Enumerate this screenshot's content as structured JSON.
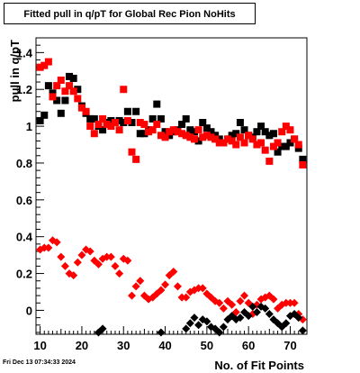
{
  "title": "Fitted pull in q/pT for Global Rec Pion NoHits",
  "footer": "Fri Dec 13 07:34:33 2024",
  "chart_data": {
    "type": "scatter",
    "xlabel": "No. of Fit Points",
    "ylabel": "pull in q/pT",
    "xlim": [
      9,
      74
    ],
    "ylim": [
      -0.13,
      1.48
    ],
    "xticks": [
      10,
      20,
      30,
      40,
      50,
      60,
      70
    ],
    "yticks": [
      0,
      0.2,
      0.4,
      0.6,
      0.8,
      1,
      1.2,
      1.4
    ],
    "ytick_labels": [
      "0",
      "0.2",
      "0.4",
      "0.6",
      "0.8",
      "1",
      "1.2",
      "1.4"
    ],
    "grid": false,
    "legend": "none",
    "series": [
      {
        "marker": "square",
        "color": "#000000",
        "points": [
          [
            10,
            1.03
          ],
          [
            11,
            1.06
          ],
          [
            12,
            1.22
          ],
          [
            13,
            1.18
          ],
          [
            14,
            1.14
          ],
          [
            15,
            1.07
          ],
          [
            16,
            1.14
          ],
          [
            17,
            1.27
          ],
          [
            18,
            1.26
          ],
          [
            19,
            1.2
          ],
          [
            20,
            1.11
          ],
          [
            21,
            1.07
          ],
          [
            22,
            1.04
          ],
          [
            23,
            1.04
          ],
          [
            24,
            1.0
          ],
          [
            25,
            0.98
          ],
          [
            26,
            1.02
          ],
          [
            27,
            1.03
          ],
          [
            28,
            1.02
          ],
          [
            29,
            1.03
          ],
          [
            30,
            1.02
          ],
          [
            31,
            1.08
          ],
          [
            32,
            1.02
          ],
          [
            33,
            1.08
          ],
          [
            34,
            0.96
          ],
          [
            35,
            0.96
          ],
          [
            36,
            0.98
          ],
          [
            37,
            1.04
          ],
          [
            38,
            1.12
          ],
          [
            39,
            1.04
          ],
          [
            40,
            0.97
          ],
          [
            41,
            0.95
          ],
          [
            42,
            0.97
          ],
          [
            43,
            0.98
          ],
          [
            44,
            1.01
          ],
          [
            45,
            1.04
          ],
          [
            46,
            0.98
          ],
          [
            47,
            0.97
          ],
          [
            48,
            0.92
          ],
          [
            49,
            1.02
          ],
          [
            50,
            0.99
          ],
          [
            51,
            0.97
          ],
          [
            52,
            0.95
          ],
          [
            53,
            0.93
          ],
          [
            54,
            0.91
          ],
          [
            55,
            0.93
          ],
          [
            56,
            0.95
          ],
          [
            57,
            0.96
          ],
          [
            58,
            1.02
          ],
          [
            59,
            0.98
          ],
          [
            60,
            0.95
          ],
          [
            61,
            0.94
          ],
          [
            62,
            0.97
          ],
          [
            63,
            1.0
          ],
          [
            64,
            0.97
          ],
          [
            65,
            0.95
          ],
          [
            66,
            0.96
          ],
          [
            67,
            0.86
          ],
          [
            68,
            0.89
          ],
          [
            69,
            0.89
          ],
          [
            70,
            0.91
          ],
          [
            71,
            0.93
          ],
          [
            72,
            0.88
          ],
          [
            73,
            0.82
          ]
        ]
      },
      {
        "marker": "square",
        "color": "#ff0000",
        "points": [
          [
            10,
            1.32
          ],
          [
            11,
            1.33
          ],
          [
            12,
            1.35
          ],
          [
            13,
            1.16
          ],
          [
            14,
            1.22
          ],
          [
            15,
            1.25
          ],
          [
            16,
            1.19
          ],
          [
            17,
            1.22
          ],
          [
            18,
            1.19
          ],
          [
            19,
            1.15
          ],
          [
            20,
            1.1
          ],
          [
            21,
            1.08
          ],
          [
            22,
            1.0
          ],
          [
            23,
            0.96
          ],
          [
            24,
            1.01
          ],
          [
            25,
            1.04
          ],
          [
            26,
            1.01
          ],
          [
            27,
            1.0
          ],
          [
            28,
            1.02
          ],
          [
            29,
            0.98
          ],
          [
            30,
            1.2
          ],
          [
            31,
            1.03
          ],
          [
            32,
            0.86
          ],
          [
            33,
            0.82
          ],
          [
            34,
            1.02
          ],
          [
            35,
            1.01
          ],
          [
            36,
            0.97
          ],
          [
            37,
            0.98
          ],
          [
            38,
            1.01
          ],
          [
            39,
            0.95
          ],
          [
            40,
            0.94
          ],
          [
            41,
            0.97
          ],
          [
            42,
            0.98
          ],
          [
            43,
            0.97
          ],
          [
            44,
            0.96
          ],
          [
            45,
            0.95
          ],
          [
            46,
            0.94
          ],
          [
            47,
            0.93
          ],
          [
            48,
            0.98
          ],
          [
            49,
            0.94
          ],
          [
            50,
            0.95
          ],
          [
            51,
            0.94
          ],
          [
            52,
            0.93
          ],
          [
            53,
            0.91
          ],
          [
            54,
            0.91
          ],
          [
            55,
            0.93
          ],
          [
            56,
            0.92
          ],
          [
            57,
            0.9
          ],
          [
            58,
            0.94
          ],
          [
            59,
            0.91
          ],
          [
            60,
            0.95
          ],
          [
            61,
            0.93
          ],
          [
            62,
            0.9
          ],
          [
            63,
            0.91
          ],
          [
            64,
            0.87
          ],
          [
            65,
            0.81
          ],
          [
            66,
            0.89
          ],
          [
            67,
            0.91
          ],
          [
            68,
            0.97
          ],
          [
            69,
            1.0
          ],
          [
            70,
            0.98
          ],
          [
            71,
            0.93
          ],
          [
            72,
            0.9
          ],
          [
            73,
            0.79
          ]
        ]
      },
      {
        "marker": "diamond",
        "color": "#ff0000",
        "points": [
          [
            10,
            0.33
          ],
          [
            11,
            0.34
          ],
          [
            12,
            0.34
          ],
          [
            13,
            0.38
          ],
          [
            14,
            0.37
          ],
          [
            15,
            0.29
          ],
          [
            16,
            0.24
          ],
          [
            17,
            0.2
          ],
          [
            18,
            0.19
          ],
          [
            19,
            0.26
          ],
          [
            20,
            0.3
          ],
          [
            21,
            0.33
          ],
          [
            22,
            0.32
          ],
          [
            23,
            0.27
          ],
          [
            24,
            0.25
          ],
          [
            25,
            0.28
          ],
          [
            26,
            0.29
          ],
          [
            27,
            0.29
          ],
          [
            28,
            0.24
          ],
          [
            29,
            0.2
          ],
          [
            30,
            0.28
          ],
          [
            31,
            0.27
          ],
          [
            32,
            0.08
          ],
          [
            33,
            0.13
          ],
          [
            34,
            0.16
          ],
          [
            35,
            0.08
          ],
          [
            36,
            0.06
          ],
          [
            37,
            0.07
          ],
          [
            38,
            0.09
          ],
          [
            39,
            0.11
          ],
          [
            40,
            0.14
          ],
          [
            41,
            0.19
          ],
          [
            42,
            0.21
          ],
          [
            43,
            0.13
          ],
          [
            44,
            0.07
          ],
          [
            45,
            0.07
          ],
          [
            46,
            0.1
          ],
          [
            47,
            0.11
          ],
          [
            48,
            0.12
          ],
          [
            49,
            0.12
          ],
          [
            50,
            0.09
          ],
          [
            51,
            0.07
          ],
          [
            52,
            0.05
          ],
          [
            53,
            0.04
          ],
          [
            54,
            0.01
          ],
          [
            55,
            0.05
          ],
          [
            56,
            0.03
          ],
          [
            57,
            -0.01
          ],
          [
            58,
            0.05
          ],
          [
            59,
            0.08
          ],
          [
            60,
            0.04
          ],
          [
            61,
            -0.02
          ],
          [
            62,
            0.03
          ],
          [
            63,
            0.06
          ],
          [
            64,
            0.07
          ],
          [
            65,
            0.08
          ],
          [
            66,
            0.06
          ],
          [
            67,
            0.01
          ],
          [
            68,
            0.03
          ],
          [
            69,
            0.04
          ],
          [
            70,
            0.04
          ],
          [
            71,
            0.04
          ],
          [
            72,
            -0.02
          ],
          [
            73,
            -0.05
          ]
        ]
      },
      {
        "marker": "diamond",
        "color": "#000000",
        "points": [
          [
            24,
            -0.12
          ],
          [
            25,
            -0.1
          ],
          [
            39,
            -0.12
          ],
          [
            45,
            -0.1
          ],
          [
            46,
            -0.07
          ],
          [
            47,
            -0.04
          ],
          [
            48,
            -0.08
          ],
          [
            49,
            -0.05
          ],
          [
            50,
            -0.06
          ],
          [
            51,
            -0.09
          ],
          [
            52,
            -0.1
          ],
          [
            53,
            -0.12
          ],
          [
            54,
            -0.09
          ],
          [
            55,
            -0.05
          ],
          [
            56,
            -0.03
          ],
          [
            57,
            -0.05
          ],
          [
            58,
            -0.04
          ],
          [
            59,
            -0.01
          ],
          [
            60,
            -0.03
          ],
          [
            61,
            0.02
          ],
          [
            62,
            -0.01
          ],
          [
            63,
            0.02
          ],
          [
            64,
            0.01
          ],
          [
            65,
            -0.02
          ],
          [
            66,
            -0.05
          ],
          [
            67,
            -0.07
          ],
          [
            68,
            -0.09
          ],
          [
            69,
            -0.07
          ],
          [
            70,
            -0.03
          ],
          [
            71,
            -0.02
          ],
          [
            72,
            -0.04
          ],
          [
            73,
            -0.11
          ]
        ]
      }
    ]
  }
}
